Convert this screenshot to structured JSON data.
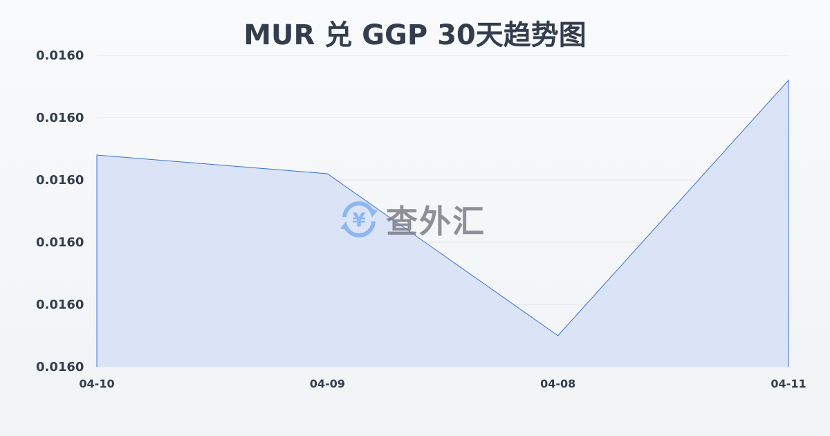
{
  "chart_data": {
    "type": "area",
    "title": "MUR 兑 GGP 30天趋势图",
    "xlabel": "",
    "ylabel": "",
    "categories": [
      "04-10",
      "04-09",
      "04-08",
      "04-11"
    ],
    "series": [
      {
        "values": [
          0.016014,
          0.016011,
          0.015985,
          0.016026
        ]
      }
    ],
    "ylim": [
      0.01598,
      0.01603
    ],
    "yticks": [
      0.01598,
      0.01599,
      0.016,
      0.01601,
      0.01602,
      0.01603
    ],
    "ytick_labels": [
      "0.0160",
      "0.0160",
      "0.0160",
      "0.0160",
      "0.0160",
      "0.0160"
    ],
    "grid": true,
    "colors": {
      "line": "#3a6fd8",
      "fill": "#d9e3f6",
      "grid": "#e3e6ea"
    }
  },
  "watermark": {
    "text": "查外汇",
    "icon": "yen-exchange-icon"
  }
}
